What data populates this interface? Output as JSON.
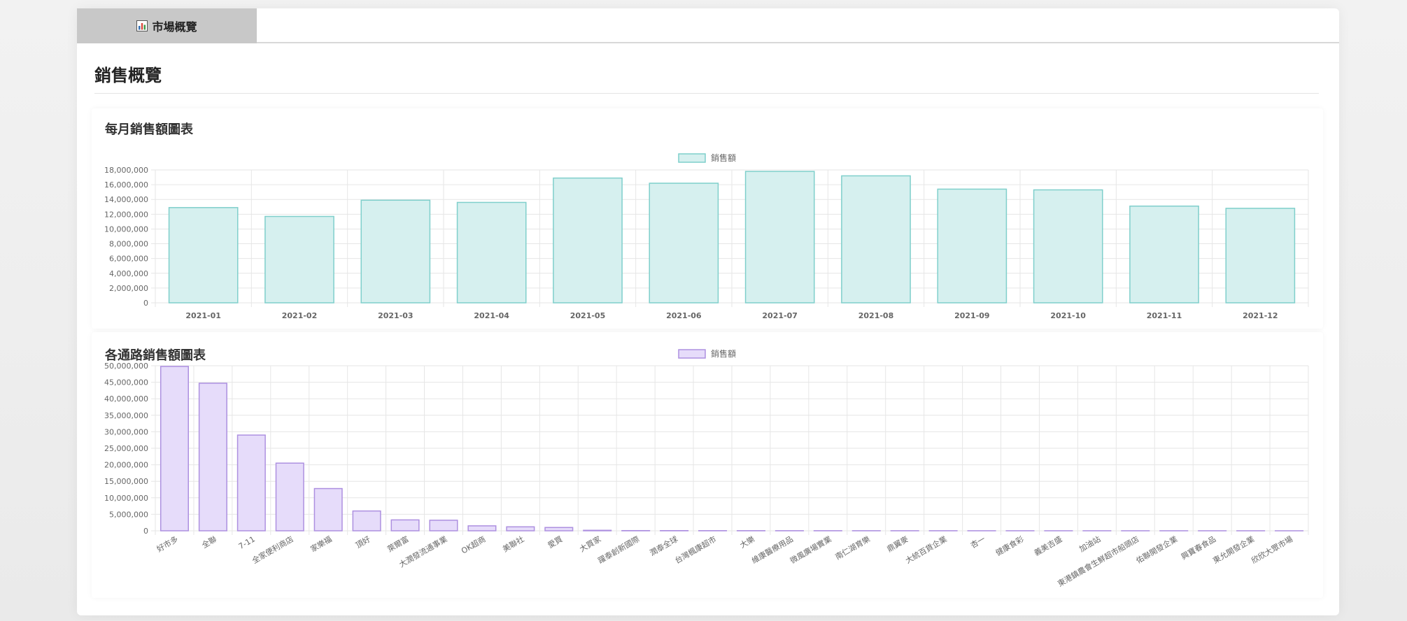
{
  "tabs": [
    {
      "label": "市場概覽",
      "icon": "bar-chart-icon"
    }
  ],
  "page": {
    "title": "銷售概覽"
  },
  "charts": {
    "monthly": {
      "title": "每月銷售額圖表"
    },
    "channel": {
      "title": "各通路銷售額圖表"
    }
  },
  "colors": {
    "tab_bg": "#c8c8c8",
    "monthly_fill": "#d6f0ef",
    "monthly_stroke": "#7fcfcb",
    "channel_fill": "#e6dcfa",
    "channel_stroke": "#ad90e0",
    "grid": "#e6e6e6"
  },
  "chart_data": [
    {
      "type": "bar",
      "title": "每月銷售額圖表",
      "categories": [
        "2021-01",
        "2021-02",
        "2021-03",
        "2021-04",
        "2021-05",
        "2021-06",
        "2021-07",
        "2021-08",
        "2021-09",
        "2021-10",
        "2021-11",
        "2021-12"
      ],
      "series": [
        {
          "name": "銷售額",
          "values": [
            12900000,
            11700000,
            13900000,
            13600000,
            16900000,
            16200000,
            17800000,
            17200000,
            15400000,
            15300000,
            13100000,
            12800000
          ]
        }
      ],
      "ylim": [
        0,
        18000000
      ],
      "yticks": [
        0,
        2000000,
        4000000,
        6000000,
        8000000,
        10000000,
        12000000,
        14000000,
        16000000,
        18000000
      ],
      "ytick_labels": [
        "0",
        "2,000,000",
        "4,000,000",
        "6,000,000",
        "8,000,000",
        "10,000,000",
        "12,000,000",
        "14,000,000",
        "16,000,000",
        "18,000,000"
      ],
      "legend": "top-center",
      "grid": true
    },
    {
      "type": "bar",
      "title": "各通路銷售額圖表",
      "categories": [
        "好市多",
        "全聯",
        "7-11",
        "全家便利商店",
        "家樂福",
        "頂好",
        "萊爾富",
        "大潤發流通事業",
        "OK超商",
        "美聯社",
        "愛買",
        "大買家",
        "躍泰創新國際",
        "潤泰全球",
        "台灣楓康超市",
        "大樂",
        "維康醫療用品",
        "微風廣場實業",
        "南仁湖育樂",
        "鼎翼麥",
        "大統百貨企業",
        "杏一",
        "健康食彩",
        "義美吉盛",
        "加油站",
        "東港鎮農會生鮮超市船頭店",
        "佑聯開發企業",
        "興寶春食品",
        "東允開發企業",
        "欣欣大眾市場"
      ],
      "series": [
        {
          "name": "銷售額",
          "values": [
            49800000,
            44700000,
            29000000,
            20500000,
            12800000,
            6000000,
            3300000,
            3200000,
            1500000,
            1200000,
            1000000,
            150000,
            60000,
            50000,
            40000,
            35000,
            30000,
            25000,
            22000,
            20000,
            18000,
            15000,
            12000,
            10000,
            9000,
            8000,
            7000,
            6000,
            5000,
            4000
          ]
        }
      ],
      "ylim": [
        0,
        50000000
      ],
      "yticks": [
        0,
        5000000,
        10000000,
        15000000,
        20000000,
        25000000,
        30000000,
        35000000,
        40000000,
        45000000,
        50000000
      ],
      "ytick_labels": [
        "0",
        "5,000,000",
        "10,000,000",
        "15,000,000",
        "20,000,000",
        "25,000,000",
        "30,000,000",
        "35,000,000",
        "40,000,000",
        "45,000,000",
        "50,000,000"
      ],
      "legend": "top-center",
      "grid": true
    }
  ]
}
